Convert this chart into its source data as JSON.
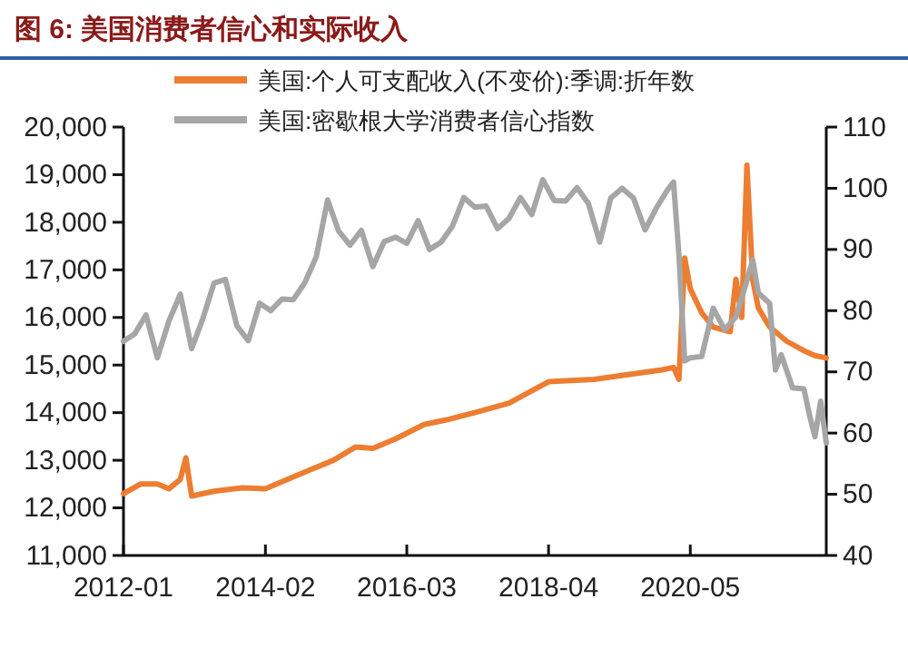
{
  "chart_data": {
    "type": "line",
    "title": "图 6: 美国消费者信心和实际收入",
    "xlim": [
      "2012-01",
      "2022-05"
    ],
    "xticks": [
      "2012-01",
      "2014-02",
      "2016-03",
      "2018-04",
      "2020-05"
    ],
    "ylim": [
      11000,
      20000
    ],
    "yticks": [
      {
        "value": 11000,
        "label": "11,000"
      },
      {
        "value": 12000,
        "label": "12,000"
      },
      {
        "value": 13000,
        "label": "13,000"
      },
      {
        "value": 14000,
        "label": "14,000"
      },
      {
        "value": 15000,
        "label": "15,000"
      },
      {
        "value": 16000,
        "label": "16,000"
      },
      {
        "value": 17000,
        "label": "17,000"
      },
      {
        "value": 18000,
        "label": "18,000"
      },
      {
        "value": 19000,
        "label": "19,000"
      },
      {
        "value": 20000,
        "label": "20,000"
      }
    ],
    "y2lim": [
      40,
      110
    ],
    "y2ticks": [
      40,
      50,
      60,
      70,
      80,
      90,
      100,
      110
    ],
    "legend": "top left",
    "grid": false,
    "marker": "none",
    "series": [
      {
        "name": "美国:个人可支配收入(不变价):季调:折年数",
        "color": "#ed7d31",
        "x": [
          "2012-01",
          "2012-04",
          "2012-07",
          "2012-09",
          "2012-11",
          "2012-12",
          "2013-01",
          "2013-05",
          "2013-10",
          "2014-02",
          "2014-06",
          "2014-10",
          "2015-02",
          "2015-06",
          "2015-09",
          "2016-01",
          "2016-06",
          "2016-10",
          "2017-03",
          "2017-09",
          "2018-04",
          "2018-12",
          "2019-06",
          "2019-12",
          "2020-02",
          "2020-03",
          "2020-04",
          "2020-05",
          "2020-07",
          "2020-09",
          "2020-12",
          "2021-01",
          "2021-02",
          "2021-03",
          "2021-04",
          "2021-05",
          "2021-07",
          "2021-10",
          "2022-01",
          "2022-03",
          "2022-05"
        ],
        "values": [
          12300,
          12500,
          12500,
          12400,
          12600,
          13050,
          12250,
          12350,
          12420,
          12400,
          12600,
          12800,
          13000,
          13280,
          13250,
          13450,
          13750,
          13850,
          14000,
          14200,
          14650,
          14700,
          14800,
          14900,
          14950,
          14700,
          17250,
          16600,
          16100,
          15800,
          15700,
          16800,
          16000,
          19200,
          16800,
          16200,
          15800,
          15500,
          15300,
          15200,
          15150
        ]
      },
      {
        "name": "美国:密歇根大学消费者信心指数",
        "color": "#a6a6a6",
        "axis": "y2",
        "x": [
          "2012-01",
          "2012-03",
          "2012-05",
          "2012-07",
          "2012-09",
          "2012-11",
          "2013-01",
          "2013-03",
          "2013-05",
          "2013-07",
          "2013-09",
          "2013-11",
          "2014-01",
          "2014-03",
          "2014-05",
          "2014-07",
          "2014-09",
          "2014-11",
          "2015-01",
          "2015-03",
          "2015-05",
          "2015-07",
          "2015-09",
          "2015-11",
          "2016-01",
          "2016-03",
          "2016-05",
          "2016-07",
          "2016-09",
          "2016-11",
          "2017-01",
          "2017-03",
          "2017-05",
          "2017-07",
          "2017-09",
          "2017-11",
          "2018-01",
          "2018-03",
          "2018-05",
          "2018-07",
          "2018-09",
          "2018-11",
          "2019-01",
          "2019-03",
          "2019-05",
          "2019-07",
          "2019-09",
          "2019-11",
          "2020-01",
          "2020-02",
          "2020-03",
          "2020-04",
          "2020-05",
          "2020-07",
          "2020-09",
          "2020-11",
          "2021-01",
          "2021-03",
          "2021-04",
          "2021-05",
          "2021-07",
          "2021-08",
          "2021-09",
          "2021-11",
          "2022-01",
          "2022-02",
          "2022-03",
          "2022-04",
          "2022-05"
        ],
        "values": [
          75,
          76.2,
          79.3,
          72.3,
          78.3,
          82.7,
          73.8,
          78.6,
          84.5,
          85.1,
          77.5,
          75.1,
          81.2,
          80,
          81.9,
          81.8,
          84.6,
          88.8,
          98.1,
          93,
          90.7,
          93.1,
          87.2,
          91.3,
          92,
          91,
          94.7,
          90,
          91.2,
          93.8,
          98.5,
          96.9,
          97.1,
          93.4,
          95.1,
          98.5,
          95.7,
          101.4,
          98,
          97.9,
          100.1,
          97.5,
          91.2,
          98.4,
          100,
          98.4,
          93.2,
          96.8,
          99.8,
          101,
          89.1,
          71.8,
          72.3,
          72.5,
          80.4,
          76.9,
          79,
          84.9,
          88.3,
          82.9,
          81.2,
          70.3,
          72.8,
          67.4,
          67.2,
          62.8,
          59.4,
          65.2,
          58.4
        ]
      }
    ]
  }
}
